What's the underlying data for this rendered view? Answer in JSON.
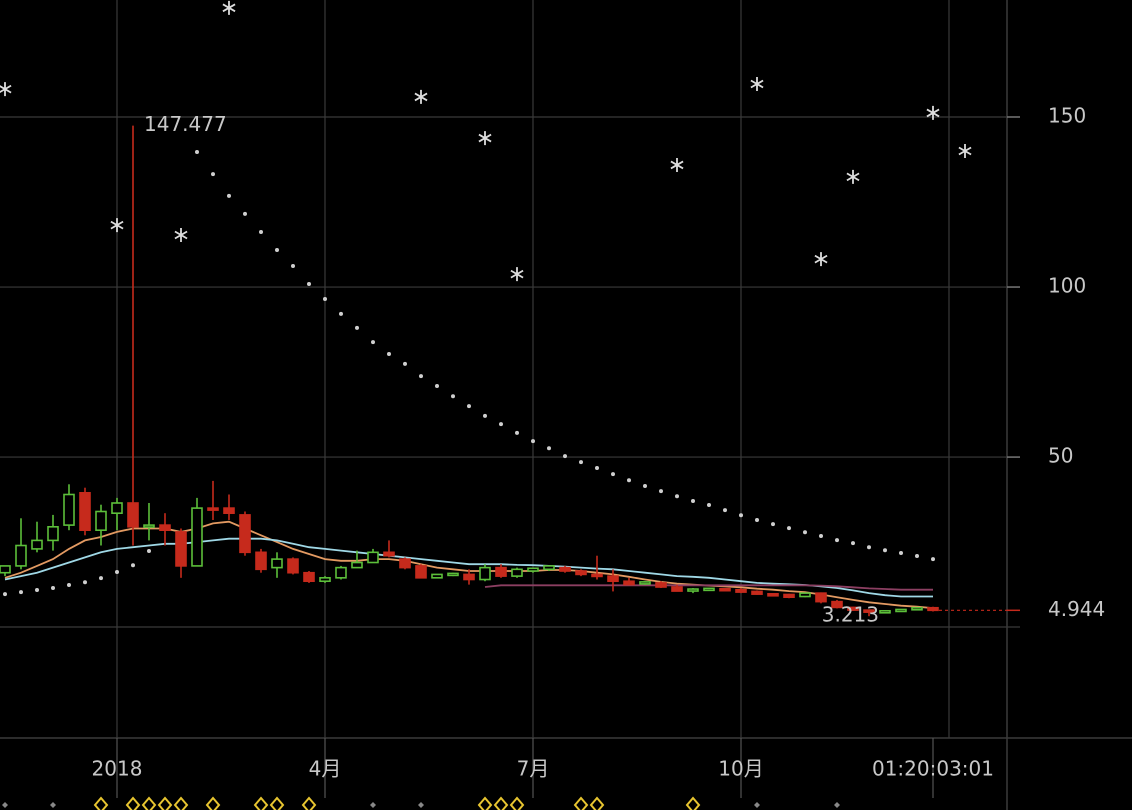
{
  "chart_data": {
    "type": "candlestick",
    "x": [
      0,
      1,
      2,
      3,
      4,
      5,
      6,
      7,
      8,
      9,
      10,
      11,
      12,
      13,
      14,
      15,
      16,
      17,
      18,
      19,
      20,
      21,
      22,
      23,
      24,
      25,
      26,
      27,
      28,
      29,
      30,
      31,
      32,
      33,
      34,
      35,
      36,
      37,
      38,
      39,
      40,
      41,
      42,
      43,
      44,
      45,
      46,
      47,
      48,
      49,
      50,
      51,
      52,
      53,
      54,
      55,
      56,
      57,
      58
    ],
    "open": [
      16,
      18,
      23,
      25.5,
      30,
      39.5,
      28.5,
      33.5,
      36.5,
      29.5,
      30,
      28,
      18,
      35,
      35,
      33,
      22,
      17.5,
      20,
      16,
      13.5,
      14.5,
      17.5,
      19,
      22,
      20,
      18,
      14.5,
      15.5,
      15.5,
      14,
      17.5,
      15,
      16.5,
      17,
      17.5,
      16.5,
      15.5,
      15,
      13.5,
      12.8,
      13,
      11.8,
      10.8,
      11.2,
      11.3,
      11,
      10.5,
      9.8,
      9.6,
      9,
      10,
      7.5,
      5.8,
      5,
      4.4,
      4.8,
      5.1,
      5.7
    ],
    "high": [
      18,
      32,
      31,
      33,
      42,
      41,
      36,
      38,
      147.477,
      36.5,
      33.5,
      29,
      38,
      43,
      39,
      34,
      23,
      22,
      20.5,
      16.5,
      15,
      18,
      22.5,
      23,
      25.5,
      20.5,
      18.5,
      15.5,
      16,
      17,
      18.5,
      18.5,
      17.5,
      17.5,
      18,
      18,
      17,
      21,
      17,
      14.5,
      13.5,
      13.5,
      12.5,
      11.5,
      11.5,
      11.5,
      11.5,
      10.8,
      10,
      9.8,
      10,
      10.2,
      8,
      6,
      5.2,
      5,
      5.3,
      5.8,
      6
    ],
    "low": [
      15,
      17,
      22,
      22.5,
      28.5,
      27,
      24,
      28.5,
      24,
      25.5,
      24,
      14.5,
      18,
      31.5,
      31.5,
      21,
      16,
      14.5,
      15.5,
      13,
      13,
      14,
      17.5,
      19,
      20.5,
      17,
      14.5,
      14.5,
      15,
      12.5,
      13.5,
      14.5,
      14.5,
      16,
      16.5,
      16,
      15,
      14,
      10.5,
      12.5,
      12.5,
      11.5,
      10.5,
      10,
      11,
      10.8,
      10,
      9.5,
      9.5,
      8.5,
      8.8,
      7,
      5.5,
      4.8,
      3.213,
      4.2,
      4.6,
      5,
      4.6
    ],
    "close": [
      18,
      24,
      25.5,
      29.5,
      39,
      28.5,
      34,
      36.5,
      29.5,
      30,
      28.5,
      18,
      35,
      34.5,
      33.5,
      22,
      17,
      20,
      16,
      13.5,
      14.5,
      17.5,
      19,
      22,
      21,
      17.5,
      14.5,
      15.5,
      15.8,
      14,
      17.5,
      15,
      17,
      17.3,
      18,
      16.5,
      15.5,
      15,
      13.5,
      12.5,
      13.3,
      11.8,
      10.6,
      11.2,
      11.4,
      11,
      10.3,
      9.7,
      9.6,
      8.8,
      10,
      7.5,
      5.8,
      5,
      4.4,
      4.8,
      5.2,
      5.7,
      4.944
    ],
    "up_color": "#5cbf3a",
    "down_color": "#c62a1c",
    "lines": [
      {
        "color": "#e39a62",
        "style": "solid",
        "values": [
          14.5,
          16,
          18,
          20,
          23,
          25.5,
          26.5,
          28,
          29,
          29,
          29,
          28,
          29,
          30.5,
          31,
          29,
          27,
          25,
          23,
          21.5,
          20,
          19.5,
          19.5,
          20,
          20,
          19.5,
          18.5,
          17.5,
          17,
          16.5,
          16.5,
          16.5,
          16.5,
          16.5,
          16.8,
          16.8,
          16.5,
          16,
          15.5,
          14.8,
          14,
          13.3,
          12.8,
          12.5,
          12.2,
          12,
          11.7,
          11.3,
          11,
          10.6,
          10.3,
          9.6,
          8.8,
          8,
          7.3,
          6.8,
          6.3,
          6,
          5.6
        ]
      },
      {
        "color": "#9fd8e6",
        "style": "solid",
        "values": [
          14,
          15,
          16,
          17.5,
          19,
          20.5,
          22,
          23,
          23.5,
          24,
          24.5,
          24.5,
          25,
          25.5,
          26,
          26,
          26,
          25.5,
          24.5,
          23.5,
          23,
          22.5,
          22,
          21.5,
          21,
          20.5,
          20,
          19.5,
          19,
          18.5,
          18.5,
          18.5,
          18.3,
          18.2,
          18,
          17.8,
          17.5,
          17.2,
          17,
          16.5,
          16,
          15.5,
          15,
          14.8,
          14.5,
          14,
          13.5,
          13,
          12.8,
          12.6,
          12.4,
          12,
          11.5,
          10.8,
          10,
          9.4,
          9,
          9,
          9
        ]
      },
      {
        "color": "#8c3f62",
        "style": "solid",
        "values": [
          null,
          null,
          null,
          null,
          null,
          null,
          null,
          null,
          null,
          null,
          null,
          null,
          null,
          null,
          null,
          null,
          null,
          null,
          null,
          null,
          null,
          null,
          null,
          null,
          null,
          null,
          null,
          null,
          null,
          null,
          11.8,
          12.3,
          12.3,
          12.3,
          12.3,
          12.3,
          12.3,
          12.3,
          12.3,
          12.3,
          12.3,
          12.3,
          12.3,
          12.3,
          12.3,
          12.3,
          12.3,
          12.3,
          12.3,
          12.3,
          12.3,
          12.2,
          12,
          11.7,
          11.4,
          11.2,
          11,
          11,
          11
        ]
      },
      {
        "color": "#cfcfcf",
        "style": "dots",
        "values": [
          9.7,
          10.3,
          10.9,
          11.5,
          12.4,
          13.2,
          14.4,
          16.2,
          18.2,
          22.4,
          null,
          null,
          139.7,
          133.2,
          126.8,
          121.5,
          116.2,
          110.9,
          106.2,
          100.9,
          96.5,
          92.1,
          88,
          83.8,
          80.3,
          77.4,
          73.8,
          70.9,
          67.9,
          65,
          62.1,
          59.7,
          57.1,
          54.7,
          52.6,
          50.3,
          48.5,
          46.8,
          45,
          43.2,
          41.5,
          40,
          38.5,
          37.1,
          35.9,
          34.4,
          32.9,
          31.5,
          30.3,
          29.1,
          27.9,
          26.8,
          25.6,
          24.7,
          23.5,
          22.6,
          21.8,
          20.9,
          20
        ]
      }
    ],
    "scatter": {
      "color": "#dddddd",
      "marker": "asterisk",
      "x": [
        0,
        7,
        11,
        14,
        26,
        30,
        32,
        42,
        47,
        51,
        53,
        58,
        60
      ],
      "values": [
        158.2,
        118.2,
        115.3,
        182.1,
        155.9,
        143.8,
        103.8,
        135.9,
        159.7,
        108.2,
        132.4,
        151.2,
        140
      ]
    },
    "annotations": {
      "high": 147.477,
      "low": 3.213,
      "last": 4.944
    },
    "xlim": [
      -0.3125,
      62.625
    ],
    "ylim": [
      -32.6,
      184.4
    ],
    "xticks": [
      {
        "value": 7,
        "label": "2018"
      },
      {
        "value": 20,
        "label": "4月"
      },
      {
        "value": 33,
        "label": "7月"
      },
      {
        "value": 46,
        "label": "10月"
      },
      {
        "value": 58,
        "label": "01:20:03:01"
      }
    ],
    "yticks": [
      50,
      100,
      150
    ],
    "grid": true
  }
}
